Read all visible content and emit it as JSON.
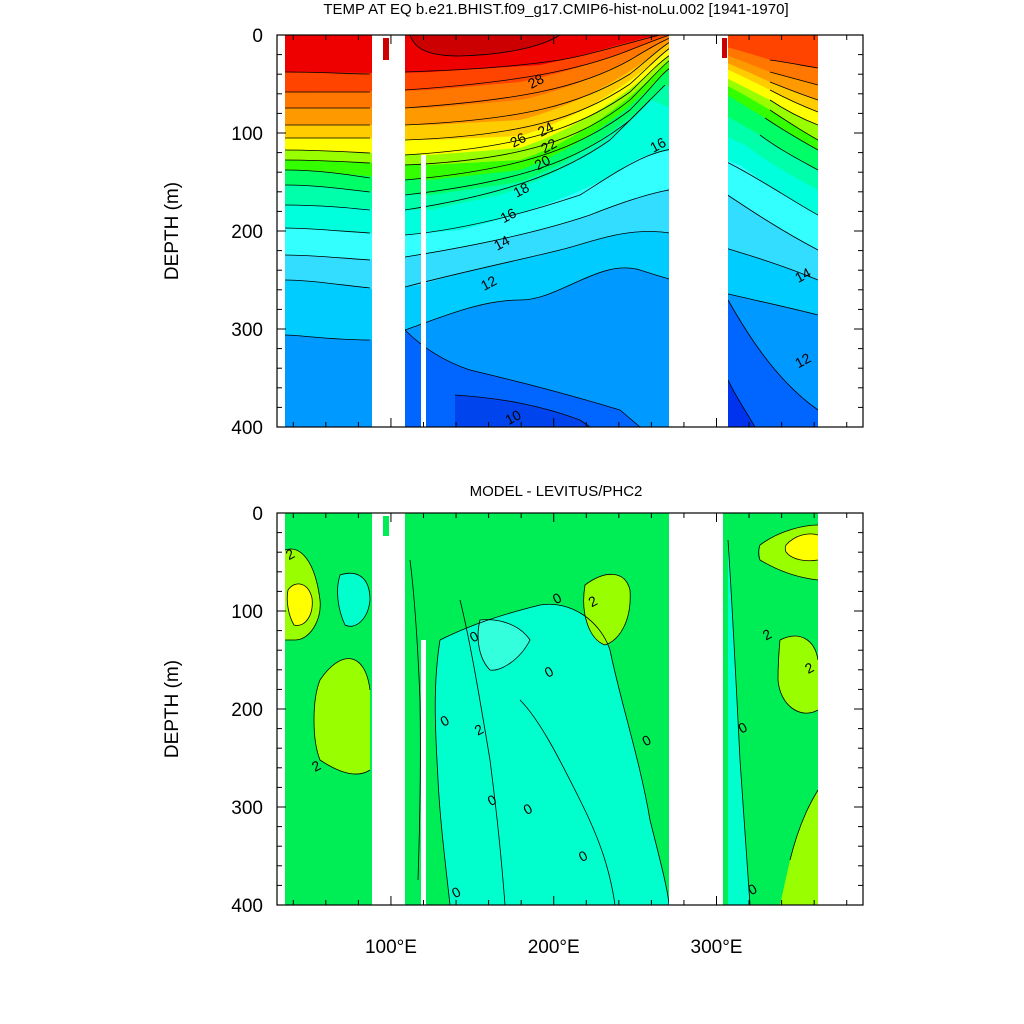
{
  "chart_data": [
    {
      "type": "heatmap",
      "subtype": "filled-contour",
      "title": "TEMP AT EQ b.e21.BHIST.f09_g17.CMIP6-hist-noLu.002 [1941-1970]",
      "ylabel": "DEPTH (m)",
      "xlabel": "",
      "x_range_deg": [
        30,
        390
      ],
      "ylim": [
        0,
        400
      ],
      "y_reversed": true,
      "y_ticks": [
        0,
        100,
        200,
        300,
        400
      ],
      "x_ticks": [
        100,
        200,
        300
      ],
      "contour_levels": [
        10,
        11,
        12,
        13,
        14,
        15,
        16,
        17,
        18,
        19,
        20,
        21,
        22,
        23,
        24,
        25,
        26,
        27,
        28,
        29
      ],
      "contour_labels": [
        {
          "text": "28",
          "lon": 189,
          "depth": 47
        },
        {
          "text": "26",
          "lon": 178,
          "depth": 107
        },
        {
          "text": "24",
          "lon": 195,
          "depth": 96
        },
        {
          "text": "22",
          "lon": 197,
          "depth": 113
        },
        {
          "text": "20",
          "lon": 193,
          "depth": 130
        },
        {
          "text": "18",
          "lon": 180,
          "depth": 158
        },
        {
          "text": "16",
          "lon": 172,
          "depth": 184
        },
        {
          "text": "16",
          "lon": 264,
          "depth": 112
        },
        {
          "text": "14",
          "lon": 168,
          "depth": 212
        },
        {
          "text": "14",
          "lon": 353,
          "depth": 245
        },
        {
          "text": "12",
          "lon": 160,
          "depth": 253
        },
        {
          "text": "12",
          "lon": 353,
          "depth": 332
        },
        {
          "text": "10",
          "lon": 175,
          "depth": 390
        }
      ],
      "land_gaps_lon": [
        [
          98,
          117
        ],
        [
          279,
          314
        ],
        [
          367,
          390
        ]
      ],
      "colors": [
        "#0033ff",
        "#0066ff",
        "#0099ff",
        "#00ccff",
        "#33ffff",
        "#00ffcc",
        "#00ff99",
        "#00ee55",
        "#33ff00",
        "#99ff00",
        "#ffff00",
        "#ffcc00",
        "#ff9900",
        "#ff7700",
        "#ff4400",
        "#ee0000",
        "#cc0000"
      ]
    },
    {
      "type": "heatmap",
      "subtype": "filled-contour",
      "title": "MODEL - LEVITUS/PHC2",
      "ylabel": "DEPTH (m)",
      "xlabel": "",
      "x_range_deg": [
        30,
        390
      ],
      "ylim": [
        0,
        400
      ],
      "y_reversed": true,
      "y_ticks": [
        0,
        100,
        200,
        300,
        400
      ],
      "x_ticks": [
        100,
        200,
        300
      ],
      "x_tick_labels": [
        "100°E",
        "200°E",
        "300°E"
      ],
      "contour_levels": [
        -2,
        -1,
        0,
        1,
        2,
        3
      ],
      "contour_labels": [
        {
          "text": "2",
          "lon": 38,
          "depth": 42
        },
        {
          "text": "2",
          "lon": 54,
          "depth": 258
        },
        {
          "text": "0",
          "lon": 133,
          "depth": 212
        },
        {
          "text": "0",
          "lon": 151,
          "depth": 126
        },
        {
          "text": "2",
          "lon": 154,
          "depth": 221
        },
        {
          "text": "0",
          "lon": 162,
          "depth": 293
        },
        {
          "text": "0",
          "lon": 202,
          "depth": 87
        },
        {
          "text": "0",
          "lon": 197,
          "depth": 162
        },
        {
          "text": "0",
          "lon": 184,
          "depth": 302
        },
        {
          "text": "0",
          "lon": 218,
          "depth": 350
        },
        {
          "text": "0",
          "lon": 257,
          "depth": 232
        },
        {
          "text": "2",
          "lon": 224,
          "depth": 90
        },
        {
          "text": "2",
          "lon": 357,
          "depth": 158
        },
        {
          "text": "2",
          "lon": 331,
          "depth": 124
        },
        {
          "text": "0",
          "lon": 316,
          "depth": 219
        },
        {
          "text": "0",
          "lon": 140,
          "depth": 387
        },
        {
          "text": "0",
          "lon": 322,
          "depth": 384
        }
      ],
      "land_gaps_lon": [
        [
          98,
          117
        ],
        [
          279,
          314
        ],
        [
          367,
          390
        ]
      ],
      "colors": [
        "#00ffcc",
        "#00ee55",
        "#33ff00",
        "#99ff00",
        "#ffff00"
      ]
    }
  ]
}
